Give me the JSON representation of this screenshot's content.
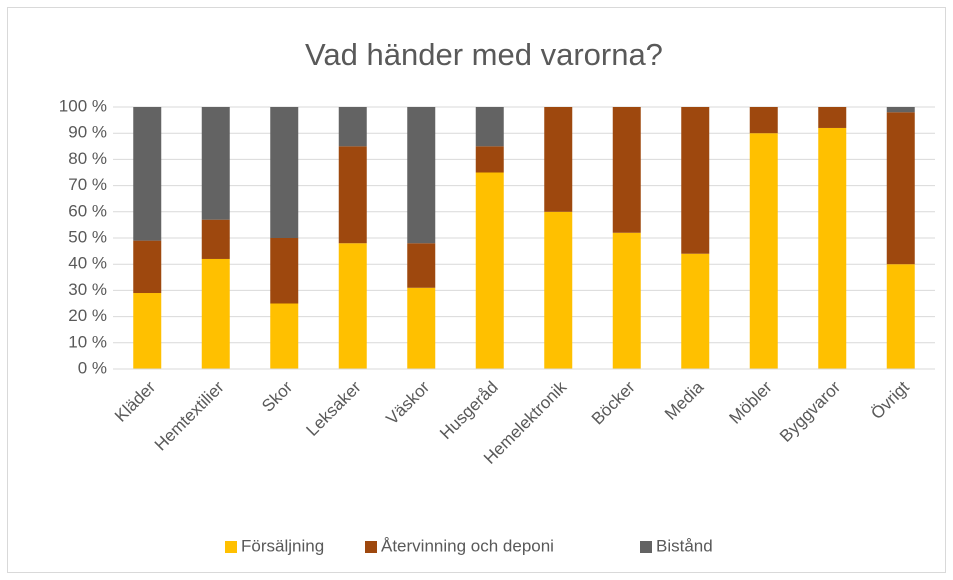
{
  "chart_data": {
    "type": "bar",
    "stacked": true,
    "title": "Vad händer med varorna?",
    "categories": [
      "Kläder",
      "Hemtextilier",
      "Skor",
      "Leksaker",
      "Väskor",
      "Husgeråd",
      "Hemelektronik",
      "Böcker",
      "Media",
      "Möbler",
      "Byggvaror",
      "Övrigt"
    ],
    "series": [
      {
        "name": "Försäljning",
        "color": "#ffc000",
        "values": [
          29,
          42,
          25,
          48,
          31,
          75,
          60,
          52,
          44,
          90,
          92,
          40
        ]
      },
      {
        "name": "Återvinning och deponi",
        "color": "#9e480e",
        "values": [
          20,
          15,
          25,
          37,
          17,
          10,
          40,
          48,
          56,
          10,
          8,
          58
        ]
      },
      {
        "name": "Bistånd",
        "color": "#636363",
        "values": [
          51,
          43,
          50,
          15,
          52,
          15,
          0,
          0,
          0,
          0,
          0,
          2
        ]
      }
    ],
    "ylim": [
      0,
      100
    ],
    "yticks": [
      {
        "value": 0,
        "label": "0 %"
      },
      {
        "value": 10,
        "label": "10 %"
      },
      {
        "value": 20,
        "label": "20 %"
      },
      {
        "value": 30,
        "label": "30 %"
      },
      {
        "value": 40,
        "label": "40 %"
      },
      {
        "value": 50,
        "label": "50 %"
      },
      {
        "value": 60,
        "label": "60 %"
      },
      {
        "value": 70,
        "label": "70 %"
      },
      {
        "value": 80,
        "label": "80 %"
      },
      {
        "value": 90,
        "label": "90 %"
      },
      {
        "value": 100,
        "label": "100 %"
      }
    ],
    "grid": true,
    "legend": "bottom"
  }
}
